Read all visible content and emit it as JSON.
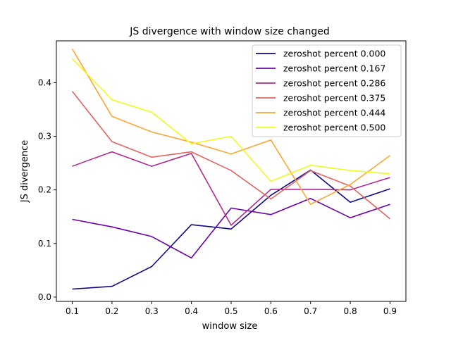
{
  "chart_data": {
    "type": "line",
    "title": "JS divergence with window size changed",
    "xlabel": "window size",
    "ylabel": "JS divergence",
    "xlim": [
      0.06,
      0.94
    ],
    "ylim": [
      -0.008,
      0.478
    ],
    "x": [
      0.1,
      0.2,
      0.3,
      0.4,
      0.5,
      0.6,
      0.7,
      0.8,
      0.9
    ],
    "x_ticks": [
      "0.1",
      "0.2",
      "0.3",
      "0.4",
      "0.5",
      "0.6",
      "0.7",
      "0.8",
      "0.9"
    ],
    "y_ticks": [
      "0.0",
      "0.1",
      "0.2",
      "0.3",
      "0.4"
    ],
    "legend_position": "top-right",
    "grid": false,
    "series": [
      {
        "name": "zeroshot percent 0.000",
        "color": "#0d0887",
        "values": [
          0.015,
          0.02,
          0.057,
          0.135,
          0.127,
          0.19,
          0.237,
          0.177,
          0.202
        ]
      },
      {
        "name": "zeroshot percent 0.167",
        "color": "#6a00a8",
        "values": [
          0.145,
          0.131,
          0.113,
          0.073,
          0.166,
          0.154,
          0.184,
          0.148,
          0.173
        ]
      },
      {
        "name": "zeroshot percent 0.286",
        "color": "#b12a90",
        "values": [
          0.244,
          0.271,
          0.244,
          0.268,
          0.134,
          0.201,
          0.201,
          0.2,
          0.223
        ]
      },
      {
        "name": "zeroshot percent 0.375",
        "color": "#e16462",
        "values": [
          0.384,
          0.29,
          0.261,
          0.271,
          0.236,
          0.183,
          0.236,
          0.207,
          0.146
        ]
      },
      {
        "name": "zeroshot percent 0.444",
        "color": "#fca636",
        "values": [
          0.463,
          0.337,
          0.308,
          0.289,
          0.267,
          0.293,
          0.173,
          0.21,
          0.264
        ]
      },
      {
        "name": "zeroshot percent 0.500",
        "color": "#f0f921",
        "values": [
          0.445,
          0.368,
          0.345,
          0.286,
          0.3,
          0.216,
          0.246,
          0.236,
          0.23
        ]
      }
    ]
  }
}
